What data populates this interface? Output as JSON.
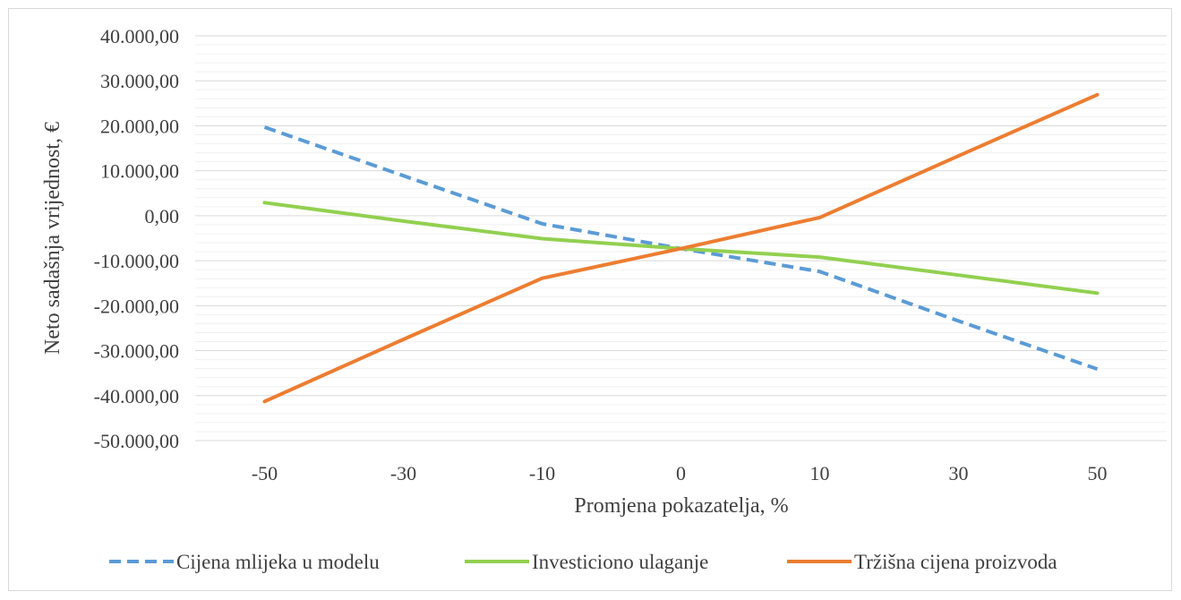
{
  "chart_data": {
    "type": "line",
    "title": "",
    "xlabel": "Promjena pokazatelja, %",
    "ylabel": "Neto sadašnja vrijednost, €",
    "categories": [
      "-50",
      "-30",
      "-10",
      "0",
      "10",
      "30",
      "50"
    ],
    "y_ticks": [
      "40.000,00",
      "30.000,00",
      "20.000,00",
      "10.000,00",
      "0,00",
      "-10.000,00",
      "-20.000,00",
      "-30.000,00",
      "-40.000,00",
      "-50.000,00"
    ],
    "ylim": [
      -50000,
      40000
    ],
    "grid": "horizontal major and minor",
    "legend_position": "bottom",
    "series": [
      {
        "name": "Cijena mlijeka u modelu",
        "color": "#5b9bd5",
        "style": "dashed",
        "values": [
          19700,
          8900,
          -1800,
          -7300,
          -12400,
          -23400,
          -34100
        ]
      },
      {
        "name": "Investiciono ulaganje",
        "color": "#92d050",
        "style": "solid",
        "values": [
          2900,
          -1200,
          -5100,
          -7300,
          -9200,
          -13200,
          -17200
        ]
      },
      {
        "name": "Tržišna cijena proizvoda",
        "color": "#ed7d31",
        "style": "solid",
        "values": [
          -41300,
          -27500,
          -13900,
          -7300,
          -400,
          13300,
          26900
        ]
      }
    ]
  }
}
